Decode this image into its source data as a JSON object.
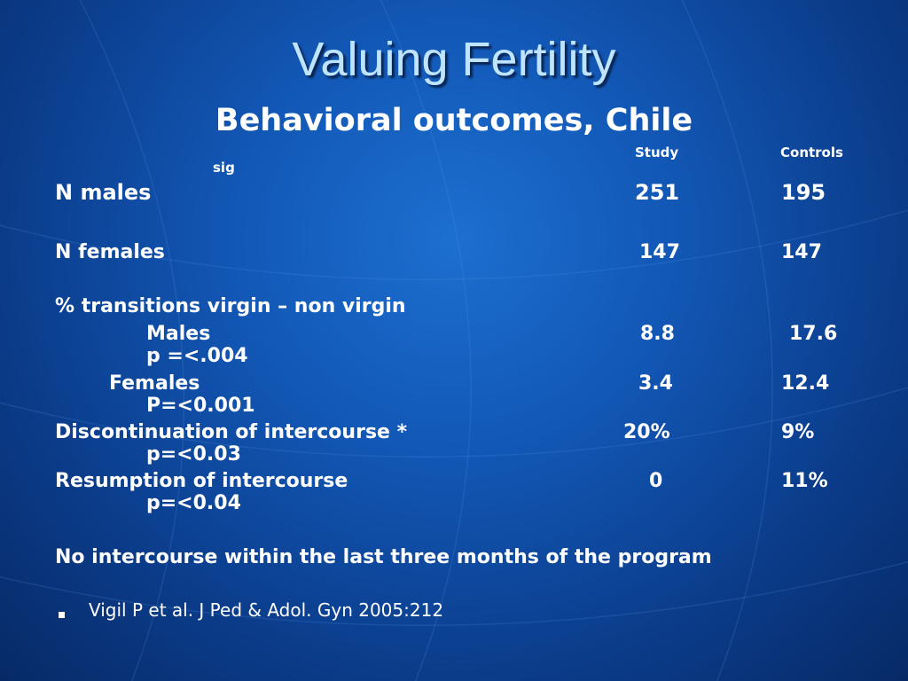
{
  "slide": {
    "title": "Valuing Fertility",
    "subtitle": "Behavioral outcomes,  Chile"
  },
  "table": {
    "col_study": "Study",
    "col_controls": "Controls",
    "col_sig": "sig",
    "n_males_label": "N  males",
    "n_males_study": "251",
    "n_males_controls": "195",
    "n_females_label": "N females",
    "n_females_study": "147",
    "n_females_controls": "147",
    "transitions_label": "% transitions virgin – non virgin",
    "males_label": "Males",
    "males_study": "8.8",
    "males_controls": "17.6",
    "males_p": "p =<.004",
    "females_label": "Females",
    "females_study": "3.4",
    "females_controls": "12.4",
    "females_p": "P=<0.001",
    "discontinuation_label": "Discontinuation of intercourse *",
    "discontinuation_study": "20%",
    "discontinuation_controls": "9%",
    "discontinuation_p": "p=<0.03",
    "resumption_label": "Resumption   of intercourse",
    "resumption_study": "0",
    "resumption_controls": "11%",
    "resumption_p": "p=<0.04",
    "footnote": "No intercourse within the last three months of the  program"
  },
  "citation": "Vigil P et al. J Ped & Adol. Gyn  2005:212",
  "colors": {
    "background": "#1257b5",
    "title": "#bfe4ff",
    "text": "#ffffff"
  }
}
